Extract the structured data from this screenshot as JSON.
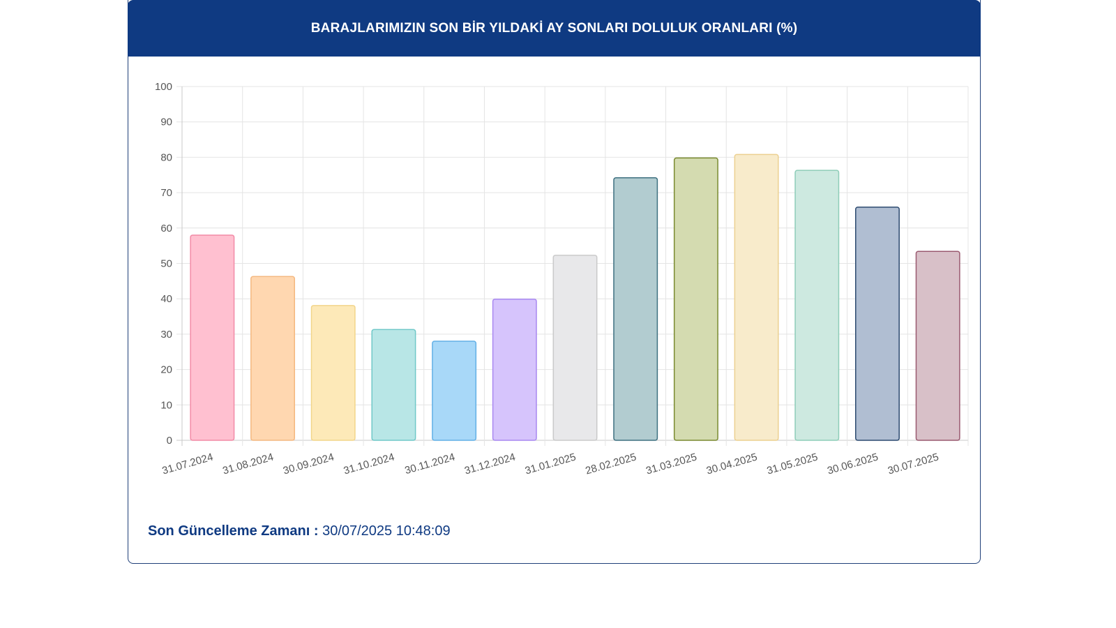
{
  "header": {
    "title": "BARAJLARIMIZIN SON BİR YILDAKİ AY SONLARI DOLULUK ORANLARI (%)"
  },
  "footer": {
    "label": "Son Güncelleme Zamanı :",
    "value": "30/07/2025 10:48:09"
  },
  "chart_data": {
    "type": "bar",
    "title": "BARAJLARIMIZIN SON BİR YILDAKİ AY SONLARI DOLULUK ORANLARI (%)",
    "categories": [
      "31.07.2024",
      "31.08.2024",
      "30.09.2024",
      "31.10.2024",
      "30.11.2024",
      "31.12.2024",
      "31.01.2025",
      "28.02.2025",
      "31.03.2025",
      "30.04.2025",
      "31.05.2025",
      "30.06.2025",
      "30.07.2025"
    ],
    "values": [
      58,
      46.3,
      38.1,
      31.3,
      28,
      39.9,
      52.3,
      74.2,
      79.8,
      80.8,
      76.3,
      65.9,
      53.4
    ],
    "ylim": [
      0,
      100
    ],
    "yticks": [
      "0",
      "10",
      "20",
      "30",
      "40",
      "50",
      "60",
      "70",
      "80",
      "90",
      "100"
    ],
    "grid": true,
    "xlabel": "",
    "ylabel": "",
    "fills": [
      "#ffc0d0",
      "#ffd7b0",
      "#fde9b8",
      "#b8e6e6",
      "#a8d8f8",
      "#d6c4fc",
      "#e8e8ea",
      "#b2ccd0",
      "#d4dbb0",
      "#f8ebcb",
      "#cde9e0",
      "#b0bed2",
      "#d8c0c8"
    ],
    "strokes": [
      "#f28aa6",
      "#f4b880",
      "#f2d58a",
      "#70c8c8",
      "#62b0e6",
      "#a888f0",
      "#cacaca",
      "#3e7080",
      "#7a8a30",
      "#ecd090",
      "#8ecdb8",
      "#2c4a70",
      "#9a5a70"
    ]
  }
}
